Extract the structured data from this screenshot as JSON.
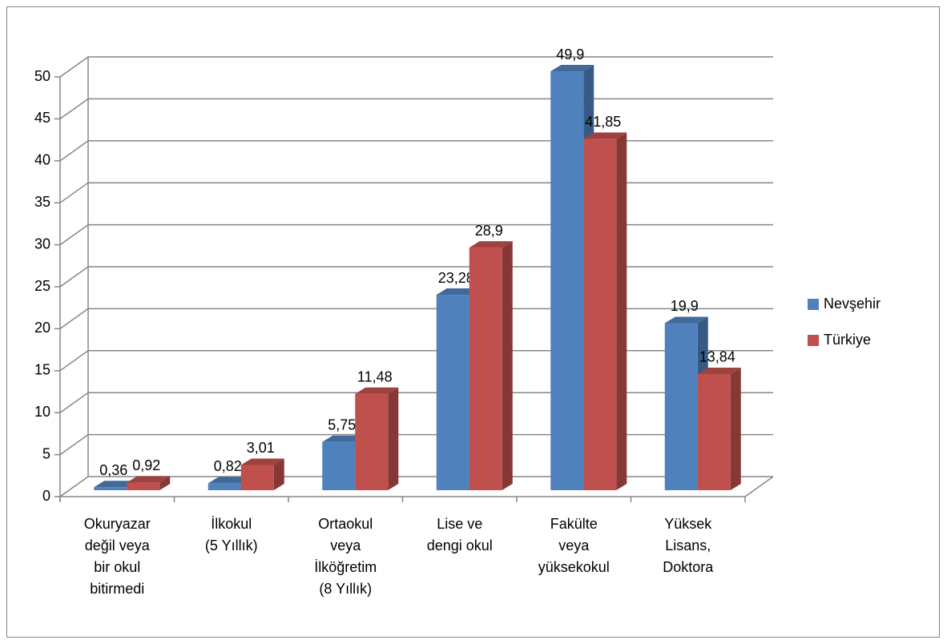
{
  "chart_data": {
    "type": "bar3d",
    "categories": [
      [
        "Okuryazar",
        "değil veya",
        "bir okul",
        "bitirmedi"
      ],
      [
        "İlkokul",
        "(5 Yıllık)"
      ],
      [
        "Ortaokul",
        "veya",
        "İlköğretim",
        "(8 Yıllık)"
      ],
      [
        "Lise ve",
        "dengi okul"
      ],
      [
        "Fakülte",
        "veya",
        "yüksekokul"
      ],
      [
        "Yüksek",
        "Lisans,",
        "Doktora"
      ]
    ],
    "series": [
      {
        "name": "Nevşehir",
        "color": "#4f81bd",
        "values": [
          0.36,
          0.82,
          5.75,
          23.28,
          49.9,
          19.9
        ],
        "value_labels": [
          "0,36",
          "0,82",
          "5,75",
          "23,28",
          "49,9",
          "19,9"
        ]
      },
      {
        "name": "Türkiye",
        "color": "#c0504d",
        "values": [
          0.92,
          3.01,
          11.48,
          28.9,
          41.85,
          13.84
        ],
        "value_labels": [
          "0,92",
          "3,01",
          "11,48",
          "28,9",
          "41,85",
          "13,84"
        ]
      }
    ],
    "ylim": [
      0,
      50
    ],
    "yticks": [
      0,
      5,
      10,
      15,
      20,
      25,
      30,
      35,
      40,
      45,
      50
    ],
    "grid": true,
    "legend": "right"
  }
}
